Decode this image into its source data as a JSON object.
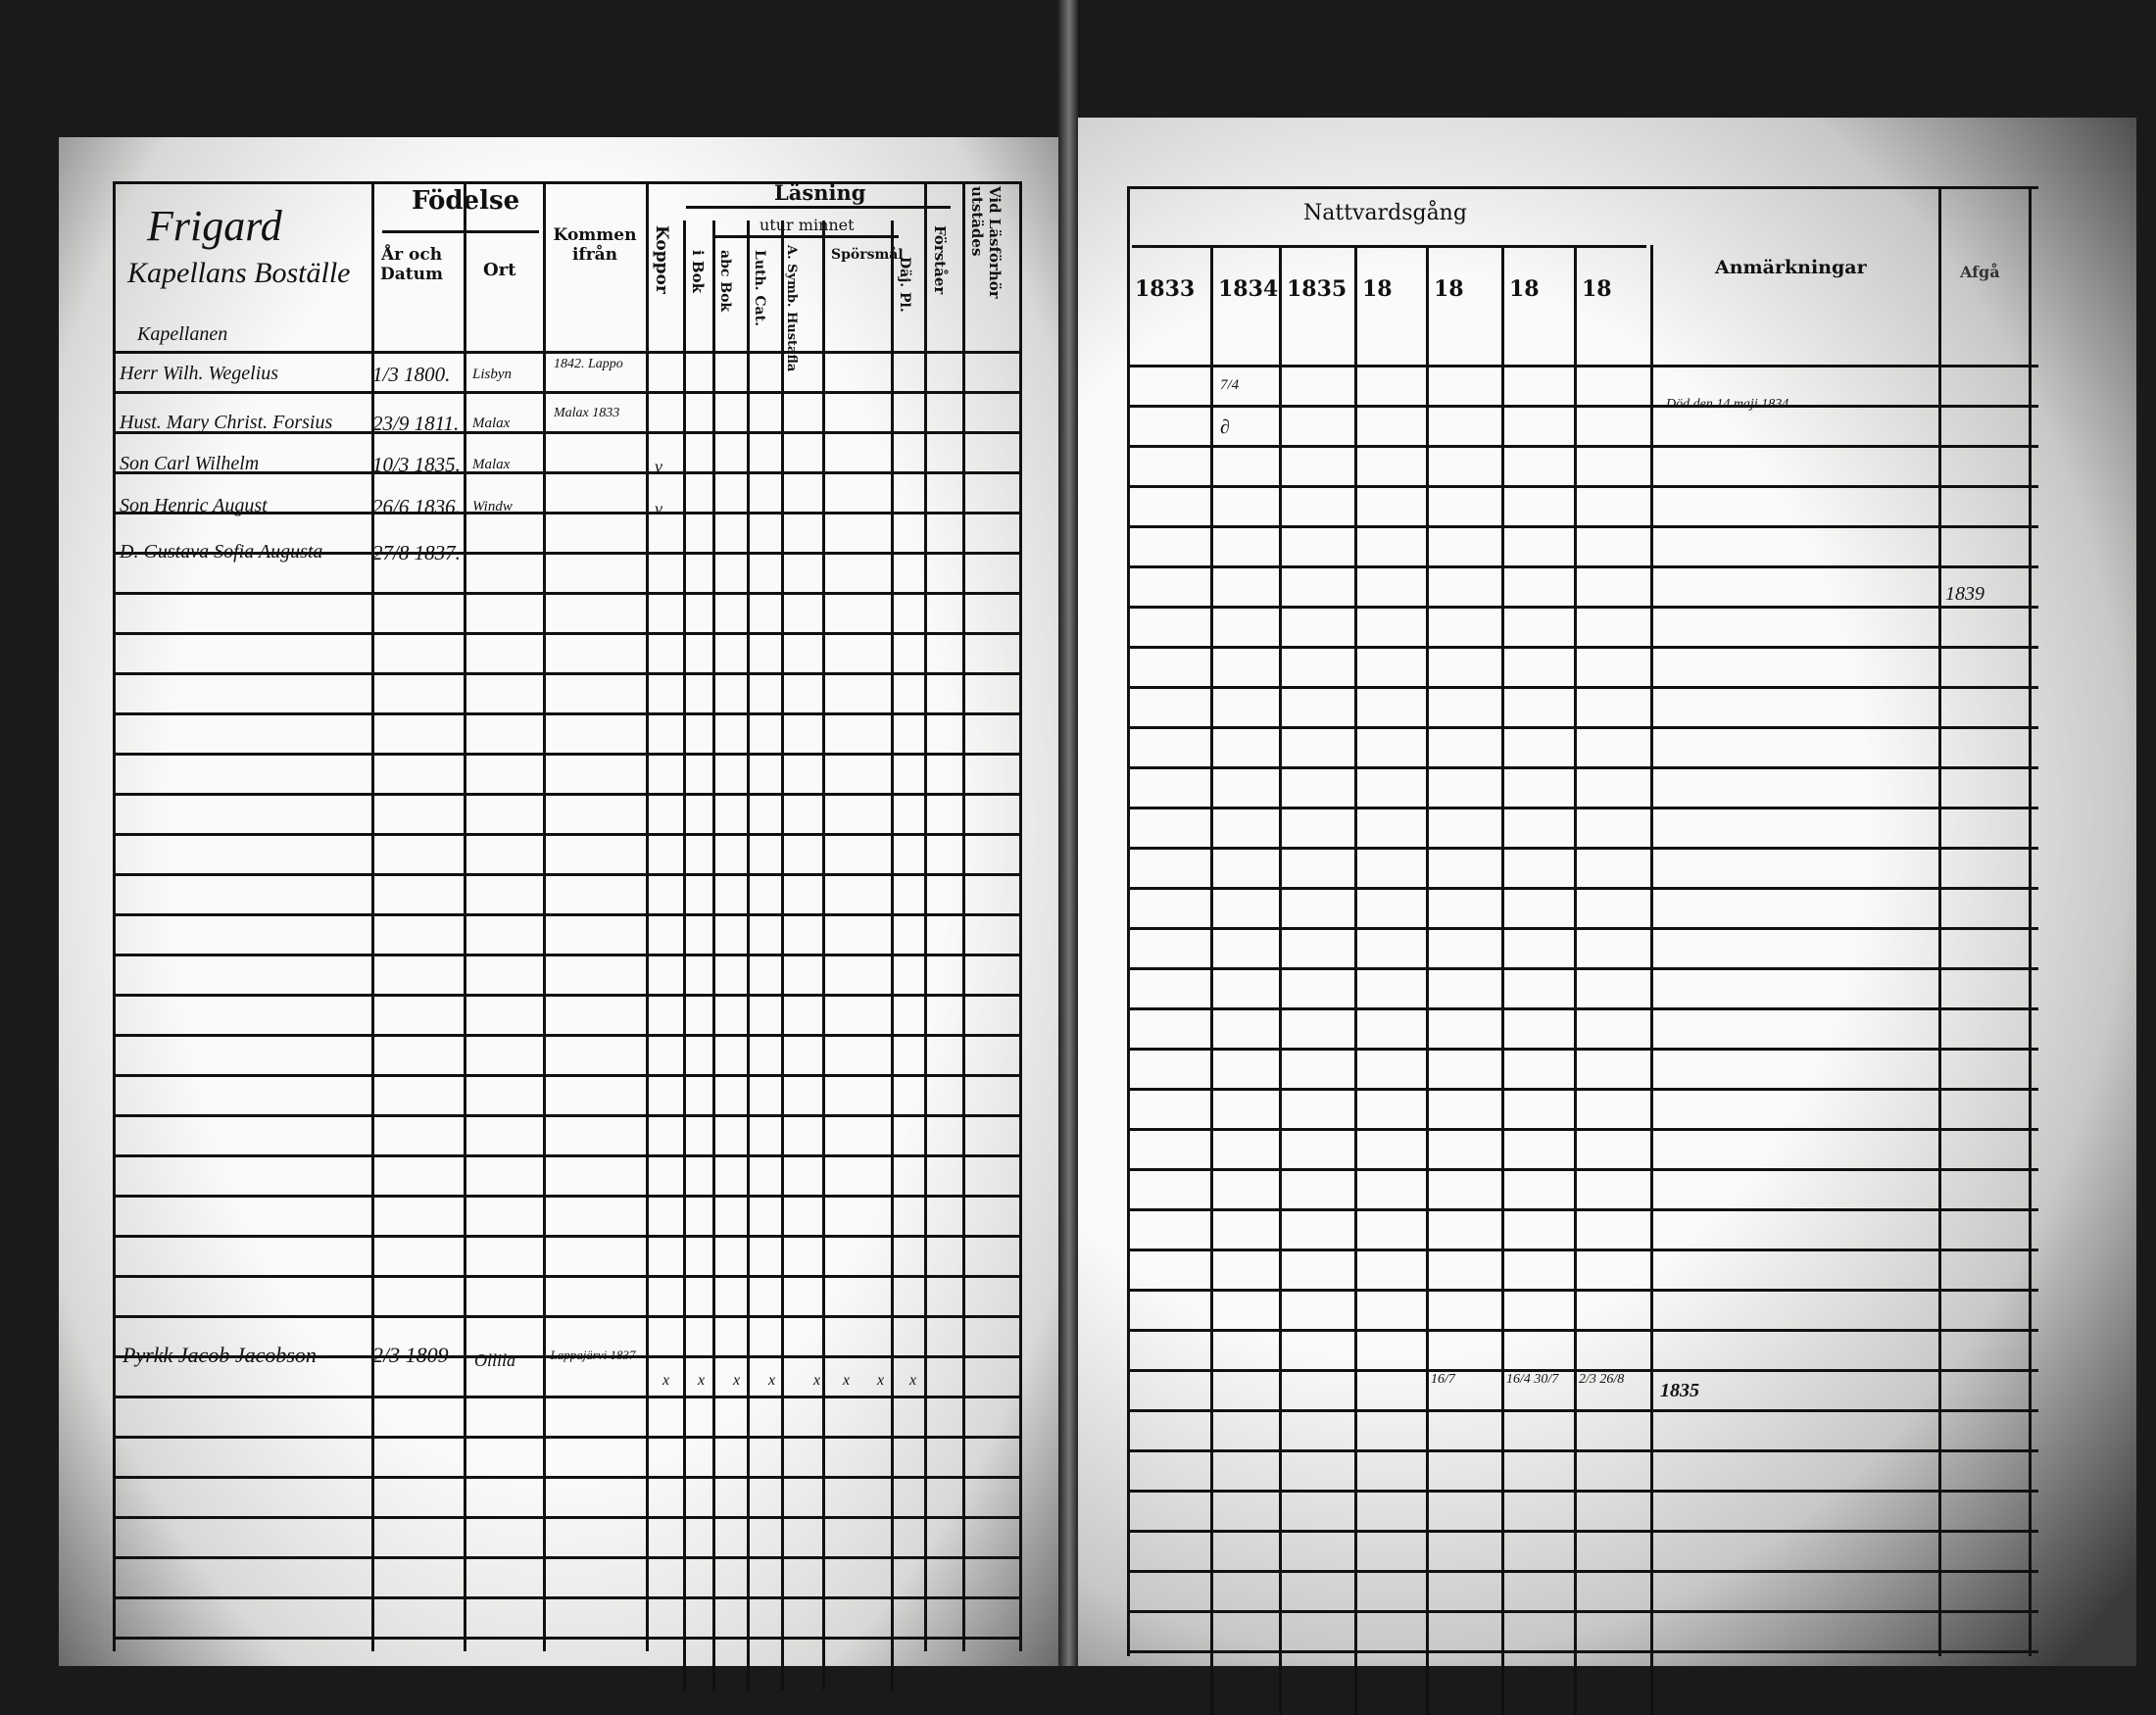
{
  "colors": {
    "ink": "#111111",
    "paper": "#f2f2f0",
    "scan_edge": "#1a1a1a"
  },
  "left": {
    "parish": "Frigard",
    "household": "Kapellans Boställe",
    "headers": {
      "fodelse": "Födelse",
      "ar_och_datum": "År och Datum",
      "ort": "Ort",
      "kommen_ifran": "Kommen ifrån",
      "koppor": "Koppor",
      "lasning": "Läsning",
      "i_bok": "i Bok",
      "utur_minnet": "utur minnet",
      "abc_bok": "abc Bok",
      "luth_cat": "Luth. Cat.",
      "a_symb": "A. Symb. Hustafla",
      "sporsmal": "Spörsmål",
      "dej_pl": "Däj. Pl.",
      "forstar": "Förståer",
      "vid_lasforhor": "Vid Läsförhör utstädes"
    },
    "section_label": "Kapellanen",
    "rows": [
      {
        "name": "Herr Wilh. Wegelius",
        "date": "1/3 1800.",
        "place": "Lisbyn",
        "from": "1842. Lappo",
        "koppor": ""
      },
      {
        "name": "Hust. Mary Christ. Forsius",
        "date": "23/9 1811.",
        "place": "Malax",
        "from": "Malax 1833",
        "koppor": ""
      },
      {
        "name": "Son Carl Wilhelm",
        "date": "10/3 1835.",
        "place": "Malax",
        "from": "",
        "koppor": "v"
      },
      {
        "name": "Son Henric August",
        "date": "26/6 1836.",
        "place": "Windw",
        "from": "",
        "koppor": "v"
      },
      {
        "name": "D. Gustava Sofia Augusta",
        "date": "27/8 1837.",
        "place": "",
        "from": "",
        "koppor": ""
      }
    ],
    "bottom_row": {
      "name": "Pyrkk Jacob Jacobson",
      "date": "2/3 1809",
      "place": "Ollila",
      "from": "Lappajärvi 1837",
      "marks": [
        "x",
        "x",
        "x",
        "x",
        "x",
        "x",
        "x",
        "x"
      ]
    }
  },
  "right": {
    "headers": {
      "nattvardsgang": "Nattvardsgång",
      "anmarkningar": "Anmärkningar",
      "last": "Afgå"
    },
    "years": [
      "1833",
      "1834",
      "1835",
      "18",
      "18",
      "18",
      "18"
    ],
    "row1_1834": "7/4",
    "row2_1834": "∂",
    "remark_row2": "Död den 14 maji 1834",
    "remark_row6": "1839",
    "bottom": {
      "c4": "16/7",
      "c5": "16/4 30/7",
      "c6": "2/3 26/8",
      "remark": "1835"
    }
  }
}
